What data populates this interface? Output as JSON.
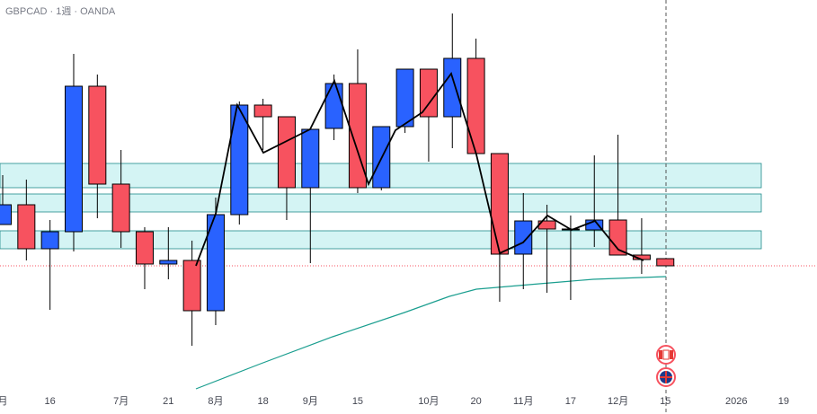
{
  "chart_data": {
    "type": "candlestick",
    "title": "GBPCAD · 1週 · OANDA",
    "categories": [
      "月",
      null,
      "16",
      null,
      null,
      "7月",
      null,
      "21",
      null,
      "8月",
      null,
      "18",
      null,
      "9月",
      null,
      "15",
      null,
      null,
      "10月",
      null,
      "20",
      null,
      "11月",
      null,
      "17",
      null,
      "12月",
      null,
      "15",
      null,
      null,
      "2026",
      null,
      "19"
    ],
    "open": [
      211,
      233,
      184,
      203,
      365,
      256,
      203,
      167,
      171,
      115,
      222,
      344,
      331,
      252,
      318,
      368,
      252,
      320,
      384,
      331,
      396,
      290,
      178,
      215,
      206,
      205,
      216,
      177,
      173,
      null,
      null,
      null,
      null,
      null
    ],
    "high": [
      266,
      261,
      216,
      401,
      378,
      294,
      208,
      208,
      193,
      241,
      348,
      351,
      331,
      317,
      378,
      406,
      320,
      384,
      384,
      446,
      418,
      290,
      246,
      233,
      221,
      288,
      311,
      218,
      173,
      null,
      null,
      null,
      null,
      null
    ],
    "low": [
      211,
      171,
      116,
      181,
      218,
      185,
      139,
      150,
      76,
      99,
      211,
      294,
      216,
      168,
      305,
      246,
      249,
      313,
      281,
      296,
      290,
      125,
      139,
      135,
      127,
      186,
      177,
      156,
      165,
      null,
      null,
      null,
      null,
      null
    ],
    "close": [
      233,
      184,
      203,
      365,
      256,
      203,
      167,
      171,
      115,
      222,
      344,
      331,
      252,
      317,
      368,
      252,
      320,
      384,
      331,
      396,
      290,
      178,
      215,
      206,
      205,
      216,
      177,
      172,
      165,
      null,
      null,
      null,
      null,
      null
    ],
    "up_color": "#2962ff",
    "down_color": "#f7525f",
    "ylim": [
      0,
      461
    ]
  }
}
